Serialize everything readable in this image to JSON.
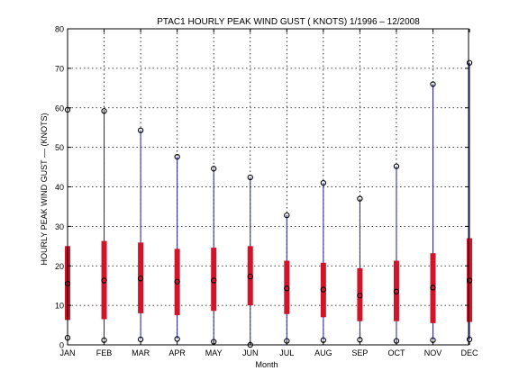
{
  "chart_data": {
    "type": "boxplot",
    "title": "PTAC1  HOURLY PEAK WIND GUST ( KNOTS) 1/1996 – 12/2008",
    "xlabel": "Month",
    "ylabel": "HOURLY PEAK WIND GUST ––  (KNOTS)",
    "categories": [
      "JAN",
      "FEB",
      "MAR",
      "APR",
      "MAY",
      "JUN",
      "JUL",
      "AUG",
      "SEP",
      "OCT",
      "NOV",
      "DEC"
    ],
    "ylim": [
      0,
      80
    ],
    "yticks": [
      0,
      10,
      20,
      30,
      40,
      50,
      60,
      70,
      80
    ],
    "grid": true,
    "series": [
      {
        "stat": "max",
        "values": [
          59.5,
          59.2,
          54.3,
          47.6,
          44.6,
          42.4,
          32.8,
          41.0,
          37.0,
          45.2,
          66.0,
          71.4
        ]
      },
      {
        "stat": "q3",
        "values": [
          25.0,
          26.3,
          25.9,
          24.3,
          24.6,
          25.0,
          21.3,
          20.8,
          19.4,
          21.3,
          23.2,
          27.0
        ]
      },
      {
        "stat": "median",
        "values": [
          15.5,
          16.3,
          16.8,
          16.0,
          16.3,
          17.3,
          14.3,
          14.0,
          12.5,
          13.5,
          14.5,
          16.3
        ]
      },
      {
        "stat": "q1",
        "values": [
          6.3,
          6.5,
          8.0,
          7.5,
          8.6,
          10.0,
          7.8,
          7.0,
          6.0,
          6.0,
          5.5,
          5.8
        ]
      },
      {
        "stat": "min",
        "values": [
          1.8,
          1.2,
          1.4,
          1.5,
          0.8,
          0.0,
          1.0,
          1.2,
          1.3,
          1.0,
          1.2,
          1.4
        ]
      }
    ],
    "colors": {
      "whisker": "#1f1fa0",
      "box": "#d2142a",
      "marker": "#000000"
    }
  }
}
